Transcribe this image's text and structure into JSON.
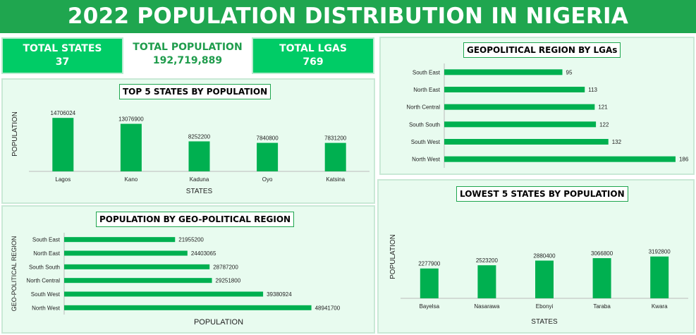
{
  "title": "2022 POPULATION DISTRIBUTION IN NIGERIA",
  "kpis": [
    {
      "label": "TOTAL STATES",
      "value": "37"
    },
    {
      "label": "TOTAL POPULATION",
      "value": "192,719,889"
    },
    {
      "label": "TOTAL LGAS",
      "value": "769"
    }
  ],
  "colors": {
    "accent": "#1fa64f",
    "bar": "#00b050",
    "kpi": "#00cc66",
    "panel": "#e8fbef"
  },
  "chart_data": [
    {
      "id": "top5",
      "type": "bar",
      "title": "TOP 5 STATES BY POPULATION",
      "xlabel": "STATES",
      "ylabel": "POPULATION",
      "categories": [
        "Lagos",
        "Kano",
        "Kaduna",
        "Oyo",
        "Katsina"
      ],
      "values": [
        14706024,
        13076900,
        8252200,
        7840800,
        7831200
      ],
      "ylim": [
        0,
        16000000
      ],
      "grid": false
    },
    {
      "id": "region_lga",
      "type": "bar",
      "orientation": "horizontal",
      "title": "GEOPOLITICAL REGION BY LGAs",
      "categories": [
        "South East",
        "North East",
        "North Central",
        "South South",
        "South West",
        "North West"
      ],
      "values": [
        95,
        113,
        121,
        122,
        132,
        186
      ],
      "xlim": [
        0,
        190
      ],
      "grid": false
    },
    {
      "id": "region_pop",
      "type": "bar",
      "orientation": "horizontal",
      "title": "POPULATION BY GEO-POLITICAL REGION",
      "xlabel": "POPULATION",
      "ylabel": "GEO-POLITICAL REGION",
      "categories": [
        "South East",
        "North East",
        "South South",
        "North Central",
        "South West",
        "North West"
      ],
      "values": [
        21955200,
        24403065,
        28787200,
        29251800,
        39380924,
        48941700
      ],
      "xlim": [
        0,
        55000000
      ],
      "grid": false
    },
    {
      "id": "low5",
      "type": "bar",
      "title": "LOWEST 5 STATES BY POPULATION",
      "xlabel": "STATES",
      "ylabel": "POPULATION",
      "categories": [
        "Bayelsa",
        "Nasarawa",
        "Ebonyi",
        "Taraba",
        "Kwara"
      ],
      "values": [
        2277900,
        2523200,
        2880400,
        3066800,
        3192800
      ],
      "ylim": [
        0,
        3500000
      ],
      "grid": false
    }
  ]
}
